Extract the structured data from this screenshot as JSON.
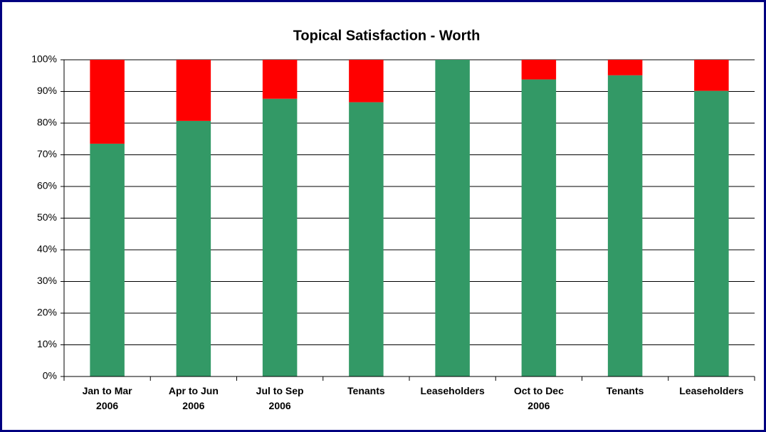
{
  "chart_data": {
    "type": "stacked_bar",
    "title": "Topical Satisfaction - Worth",
    "categories": [
      "Jan to Mar\n2006",
      "Apr to Jun\n2006",
      "Jul to Sep\n2006",
      "Tenants",
      "Leaseholders",
      "Oct to Dec\n2006",
      "Tenants",
      "Leaseholders"
    ],
    "series": [
      {
        "color": "#339966",
        "values": [
          73.5,
          80.7,
          87.7,
          86.6,
          100,
          93.8,
          95.1,
          90.2
        ]
      },
      {
        "color": "#ff0000",
        "values": [
          26.5,
          19.3,
          12.3,
          13.4,
          0,
          6.2,
          4.9,
          9.8
        ]
      }
    ],
    "ylim": [
      0,
      100
    ],
    "yticks": [
      {
        "value": 0,
        "label": "0%"
      },
      {
        "value": 10,
        "label": "10%"
      },
      {
        "value": 20,
        "label": "20%"
      },
      {
        "value": 30,
        "label": "30%"
      },
      {
        "value": 40,
        "label": "40%"
      },
      {
        "value": 50,
        "label": "50%"
      },
      {
        "value": 60,
        "label": "60%"
      },
      {
        "value": 70,
        "label": "70%"
      },
      {
        "value": 80,
        "label": "80%"
      },
      {
        "value": 90,
        "label": "90%"
      },
      {
        "value": 100,
        "label": "100%"
      }
    ],
    "grid": true
  }
}
